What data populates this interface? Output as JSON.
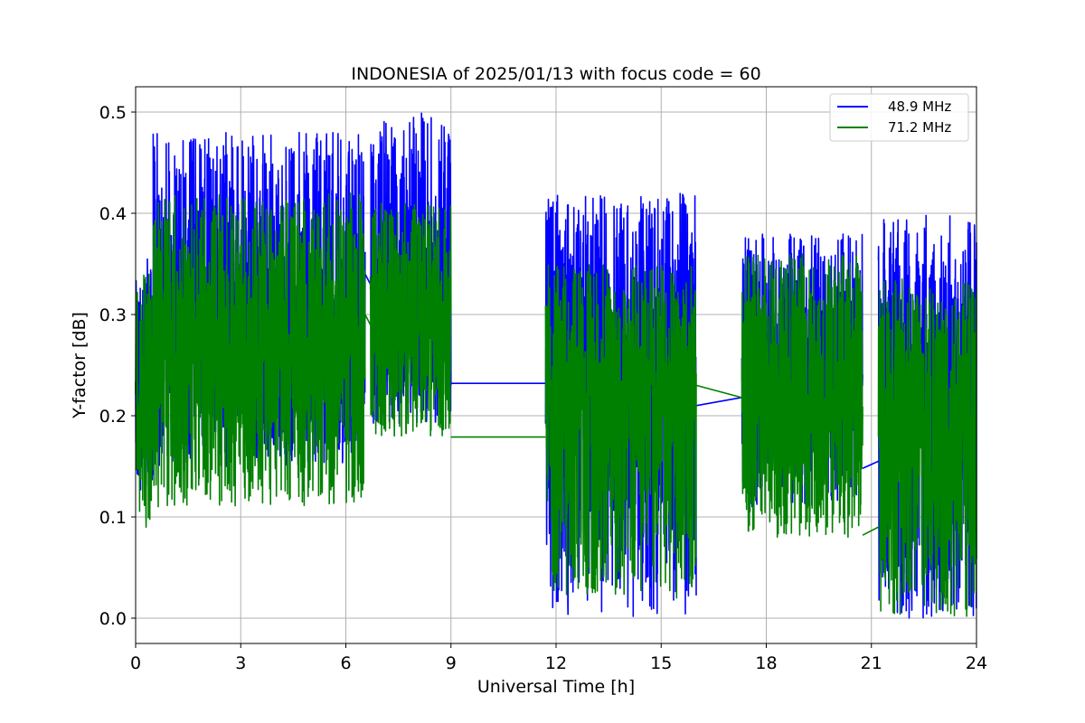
{
  "chart_data": {
    "type": "line",
    "title": "INDONESIA of 2025/01/13 with focus code = 60",
    "xlabel": "Universal Time [h]",
    "ylabel": "Y-factor [dB]",
    "xlim": [
      0,
      24
    ],
    "ylim": [
      -0.025,
      0.525
    ],
    "xticks": [
      0,
      3,
      6,
      9,
      12,
      15,
      18,
      21,
      24
    ],
    "xtick_labels": [
      "0",
      "3",
      "6",
      "9",
      "12",
      "15",
      "18",
      "21",
      "24"
    ],
    "yticks": [
      0.0,
      0.1,
      0.2,
      0.3,
      0.4,
      0.5
    ],
    "ytick_labels": [
      "0.0",
      "0.1",
      "0.2",
      "0.3",
      "0.4",
      "0.5"
    ],
    "grid": true,
    "legend_position": "top-right",
    "series": [
      {
        "name": "48.9 MHz",
        "color": "#0000ff",
        "description_envelope": [
          {
            "x_start": 0.0,
            "x_end": 0.5,
            "min": 0.12,
            "max": 0.36,
            "mean": 0.24
          },
          {
            "x_start": 0.5,
            "x_end": 6.55,
            "min": 0.15,
            "max": 0.48,
            "mean": 0.29
          },
          {
            "x_start": 6.7,
            "x_end": 9.0,
            "min": 0.19,
            "max": 0.5,
            "mean": 0.33
          },
          {
            "x_start": 11.7,
            "x_end": 16.0,
            "min": 0.0,
            "max": 0.42,
            "mean": 0.26
          },
          {
            "x_start": 17.3,
            "x_end": 20.75,
            "min": 0.11,
            "max": 0.38,
            "mean": 0.24
          },
          {
            "x_start": 21.2,
            "x_end": 24.0,
            "min": 0.0,
            "max": 0.4,
            "mean": 0.22
          }
        ],
        "connectors": [
          {
            "x": [
              6.55,
              6.7
            ],
            "y": [
              0.34,
              0.33
            ]
          },
          {
            "x": [
              9.0,
              11.7
            ],
            "y": [
              0.232,
              0.232
            ]
          },
          {
            "x": [
              16.0,
              17.3
            ],
            "y": [
              0.21,
              0.218
            ]
          },
          {
            "x": [
              20.75,
              21.2
            ],
            "y": [
              0.148,
              0.155
            ]
          }
        ]
      },
      {
        "name": "71.2 MHz",
        "color": "#008000",
        "description_envelope": [
          {
            "x_start": 0.0,
            "x_end": 0.5,
            "min": 0.09,
            "max": 0.34,
            "mean": 0.22
          },
          {
            "x_start": 0.5,
            "x_end": 6.55,
            "min": 0.11,
            "max": 0.42,
            "mean": 0.27
          },
          {
            "x_start": 6.7,
            "x_end": 9.0,
            "min": 0.18,
            "max": 0.41,
            "mean": 0.29
          },
          {
            "x_start": 11.7,
            "x_end": 16.0,
            "min": 0.02,
            "max": 0.35,
            "mean": 0.23
          },
          {
            "x_start": 17.3,
            "x_end": 20.75,
            "min": 0.08,
            "max": 0.36,
            "mean": 0.21
          },
          {
            "x_start": 21.2,
            "x_end": 24.0,
            "min": 0.0,
            "max": 0.34,
            "mean": 0.2
          }
        ],
        "connectors": [
          {
            "x": [
              6.55,
              6.7
            ],
            "y": [
              0.3,
              0.29
            ]
          },
          {
            "x": [
              9.0,
              11.7
            ],
            "y": [
              0.179,
              0.179
            ]
          },
          {
            "x": [
              16.0,
              17.3
            ],
            "y": [
              0.23,
              0.218
            ]
          },
          {
            "x": [
              20.75,
              21.2
            ],
            "y": [
              0.082,
              0.09
            ]
          }
        ]
      }
    ]
  }
}
